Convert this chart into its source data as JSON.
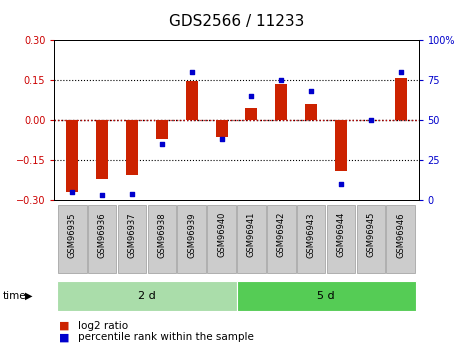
{
  "title": "GDS2566 / 11233",
  "samples": [
    "GSM96935",
    "GSM96936",
    "GSM96937",
    "GSM96938",
    "GSM96939",
    "GSM96940",
    "GSM96941",
    "GSM96942",
    "GSM96943",
    "GSM96944",
    "GSM96945",
    "GSM96946"
  ],
  "log2_ratio": [
    -0.27,
    -0.22,
    -0.205,
    -0.07,
    0.145,
    -0.065,
    0.045,
    0.135,
    0.06,
    -0.19,
    0.0,
    0.155
  ],
  "pct_rank": [
    5,
    3,
    4,
    35,
    80,
    38,
    65,
    75,
    68,
    10,
    50,
    80
  ],
  "groups": [
    {
      "label": "2 d",
      "start": 0,
      "end": 6,
      "color": "#aaddaa"
    },
    {
      "label": "5 d",
      "start": 6,
      "end": 12,
      "color": "#55cc55"
    }
  ],
  "ylim_left": [
    -0.3,
    0.3
  ],
  "ylim_right": [
    0,
    100
  ],
  "yticks_left": [
    -0.3,
    -0.15,
    0.0,
    0.15,
    0.3
  ],
  "yticks_right": [
    0,
    25,
    50,
    75,
    100
  ],
  "ytick_labels_right": [
    "0",
    "25",
    "50",
    "75",
    "100%"
  ],
  "hlines": [
    0.15,
    0.0,
    -0.15
  ],
  "bar_color_red": "#CC2200",
  "bar_color_blue": "#0000CC",
  "bar_width": 0.4,
  "plot_bg": "#FFFFFF",
  "left_tick_color": "#CC0000",
  "right_tick_color": "#0000CC",
  "title_fontsize": 11,
  "tick_fontsize": 7,
  "label_fontsize": 8,
  "legend_fontsize": 7.5,
  "sample_fontsize": 6
}
